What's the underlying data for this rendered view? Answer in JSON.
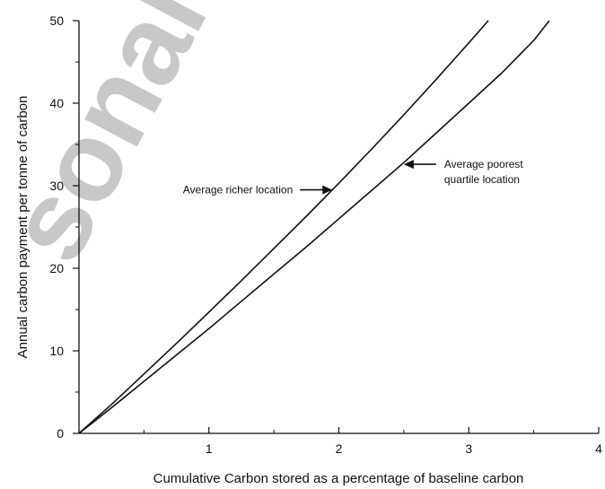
{
  "watermark": "sonal",
  "chart_data": {
    "type": "line",
    "xlabel": "Cumulative Carbon stored as a percentage of baseline carbon",
    "ylabel": "Annual carbon payment per tonne of carbon",
    "xlim": [
      0,
      4
    ],
    "ylim": [
      0,
      50
    ],
    "xticks": [
      1,
      2,
      3,
      4
    ],
    "yticks": [
      0,
      10,
      20,
      30,
      40,
      50
    ],
    "grid": false,
    "legend": "none",
    "series": [
      {
        "name": "Average richer location",
        "color": "#111111",
        "x": [
          0,
          0.25,
          0.5,
          0.75,
          1.0,
          1.25,
          1.5,
          1.75,
          2.0,
          2.25,
          2.5,
          2.75,
          3.0,
          3.15
        ],
        "y": [
          0,
          3.5,
          7.2,
          10.9,
          14.7,
          18.5,
          22.4,
          26.3,
          30.3,
          34.4,
          38.6,
          42.9,
          47.3,
          50
        ]
      },
      {
        "name": "Average poorest quartile location",
        "color": "#111111",
        "x": [
          0,
          0.25,
          0.5,
          0.75,
          1.0,
          1.25,
          1.5,
          1.75,
          2.0,
          2.25,
          2.5,
          2.75,
          3.0,
          3.25,
          3.5,
          3.62
        ],
        "y": [
          0,
          3.1,
          6.3,
          9.5,
          12.7,
          16.0,
          19.3,
          22.6,
          26.0,
          29.4,
          32.8,
          36.4,
          40.0,
          43.6,
          47.6,
          50
        ]
      }
    ],
    "annotations": [
      {
        "text": "Average richer location",
        "target_series": 0,
        "arrow_tip": [
          1.95,
          29.5
        ]
      },
      {
        "text": [
          "Average poorest",
          "quartile location"
        ],
        "target_series": 1,
        "arrow_tip": [
          2.5,
          32.6
        ]
      }
    ]
  }
}
